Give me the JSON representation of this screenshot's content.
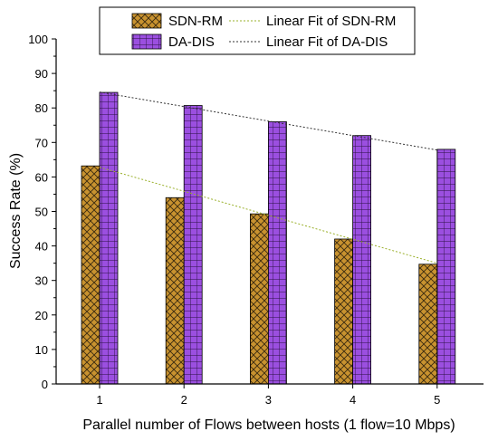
{
  "chart_data": {
    "type": "bar",
    "categories": [
      "1",
      "2",
      "3",
      "4",
      "5"
    ],
    "xlabel": "Parallel number of Flows between hosts (1 flow=10 Mbps)",
    "ylabel": "Success Rate (%)",
    "ylim": [
      0,
      100
    ],
    "yticks": [
      "0",
      "10",
      "20",
      "30",
      "40",
      "50",
      "60",
      "70",
      "80",
      "90",
      "100"
    ],
    "grid": false,
    "legend_position": "top",
    "series": [
      {
        "name": "SDN-RM",
        "values": [
          63.2,
          54.0,
          49.3,
          42.0,
          34.7
        ],
        "color": "#c8922f",
        "pattern": "crosshatch",
        "fit_name": "Linear Fit of SDN-RM",
        "fit_color": "#9ab02b",
        "fit": [
          62.8,
          35.0
        ]
      },
      {
        "name": "DA-DIS",
        "values": [
          84.5,
          80.7,
          76.0,
          72.0,
          68.0
        ],
        "color": "#9b4fe0",
        "pattern": "grid",
        "fit_name": "Linear Fit of DA-DIS",
        "fit_color": "#333333",
        "fit": [
          84.6,
          67.8
        ]
      }
    ]
  }
}
